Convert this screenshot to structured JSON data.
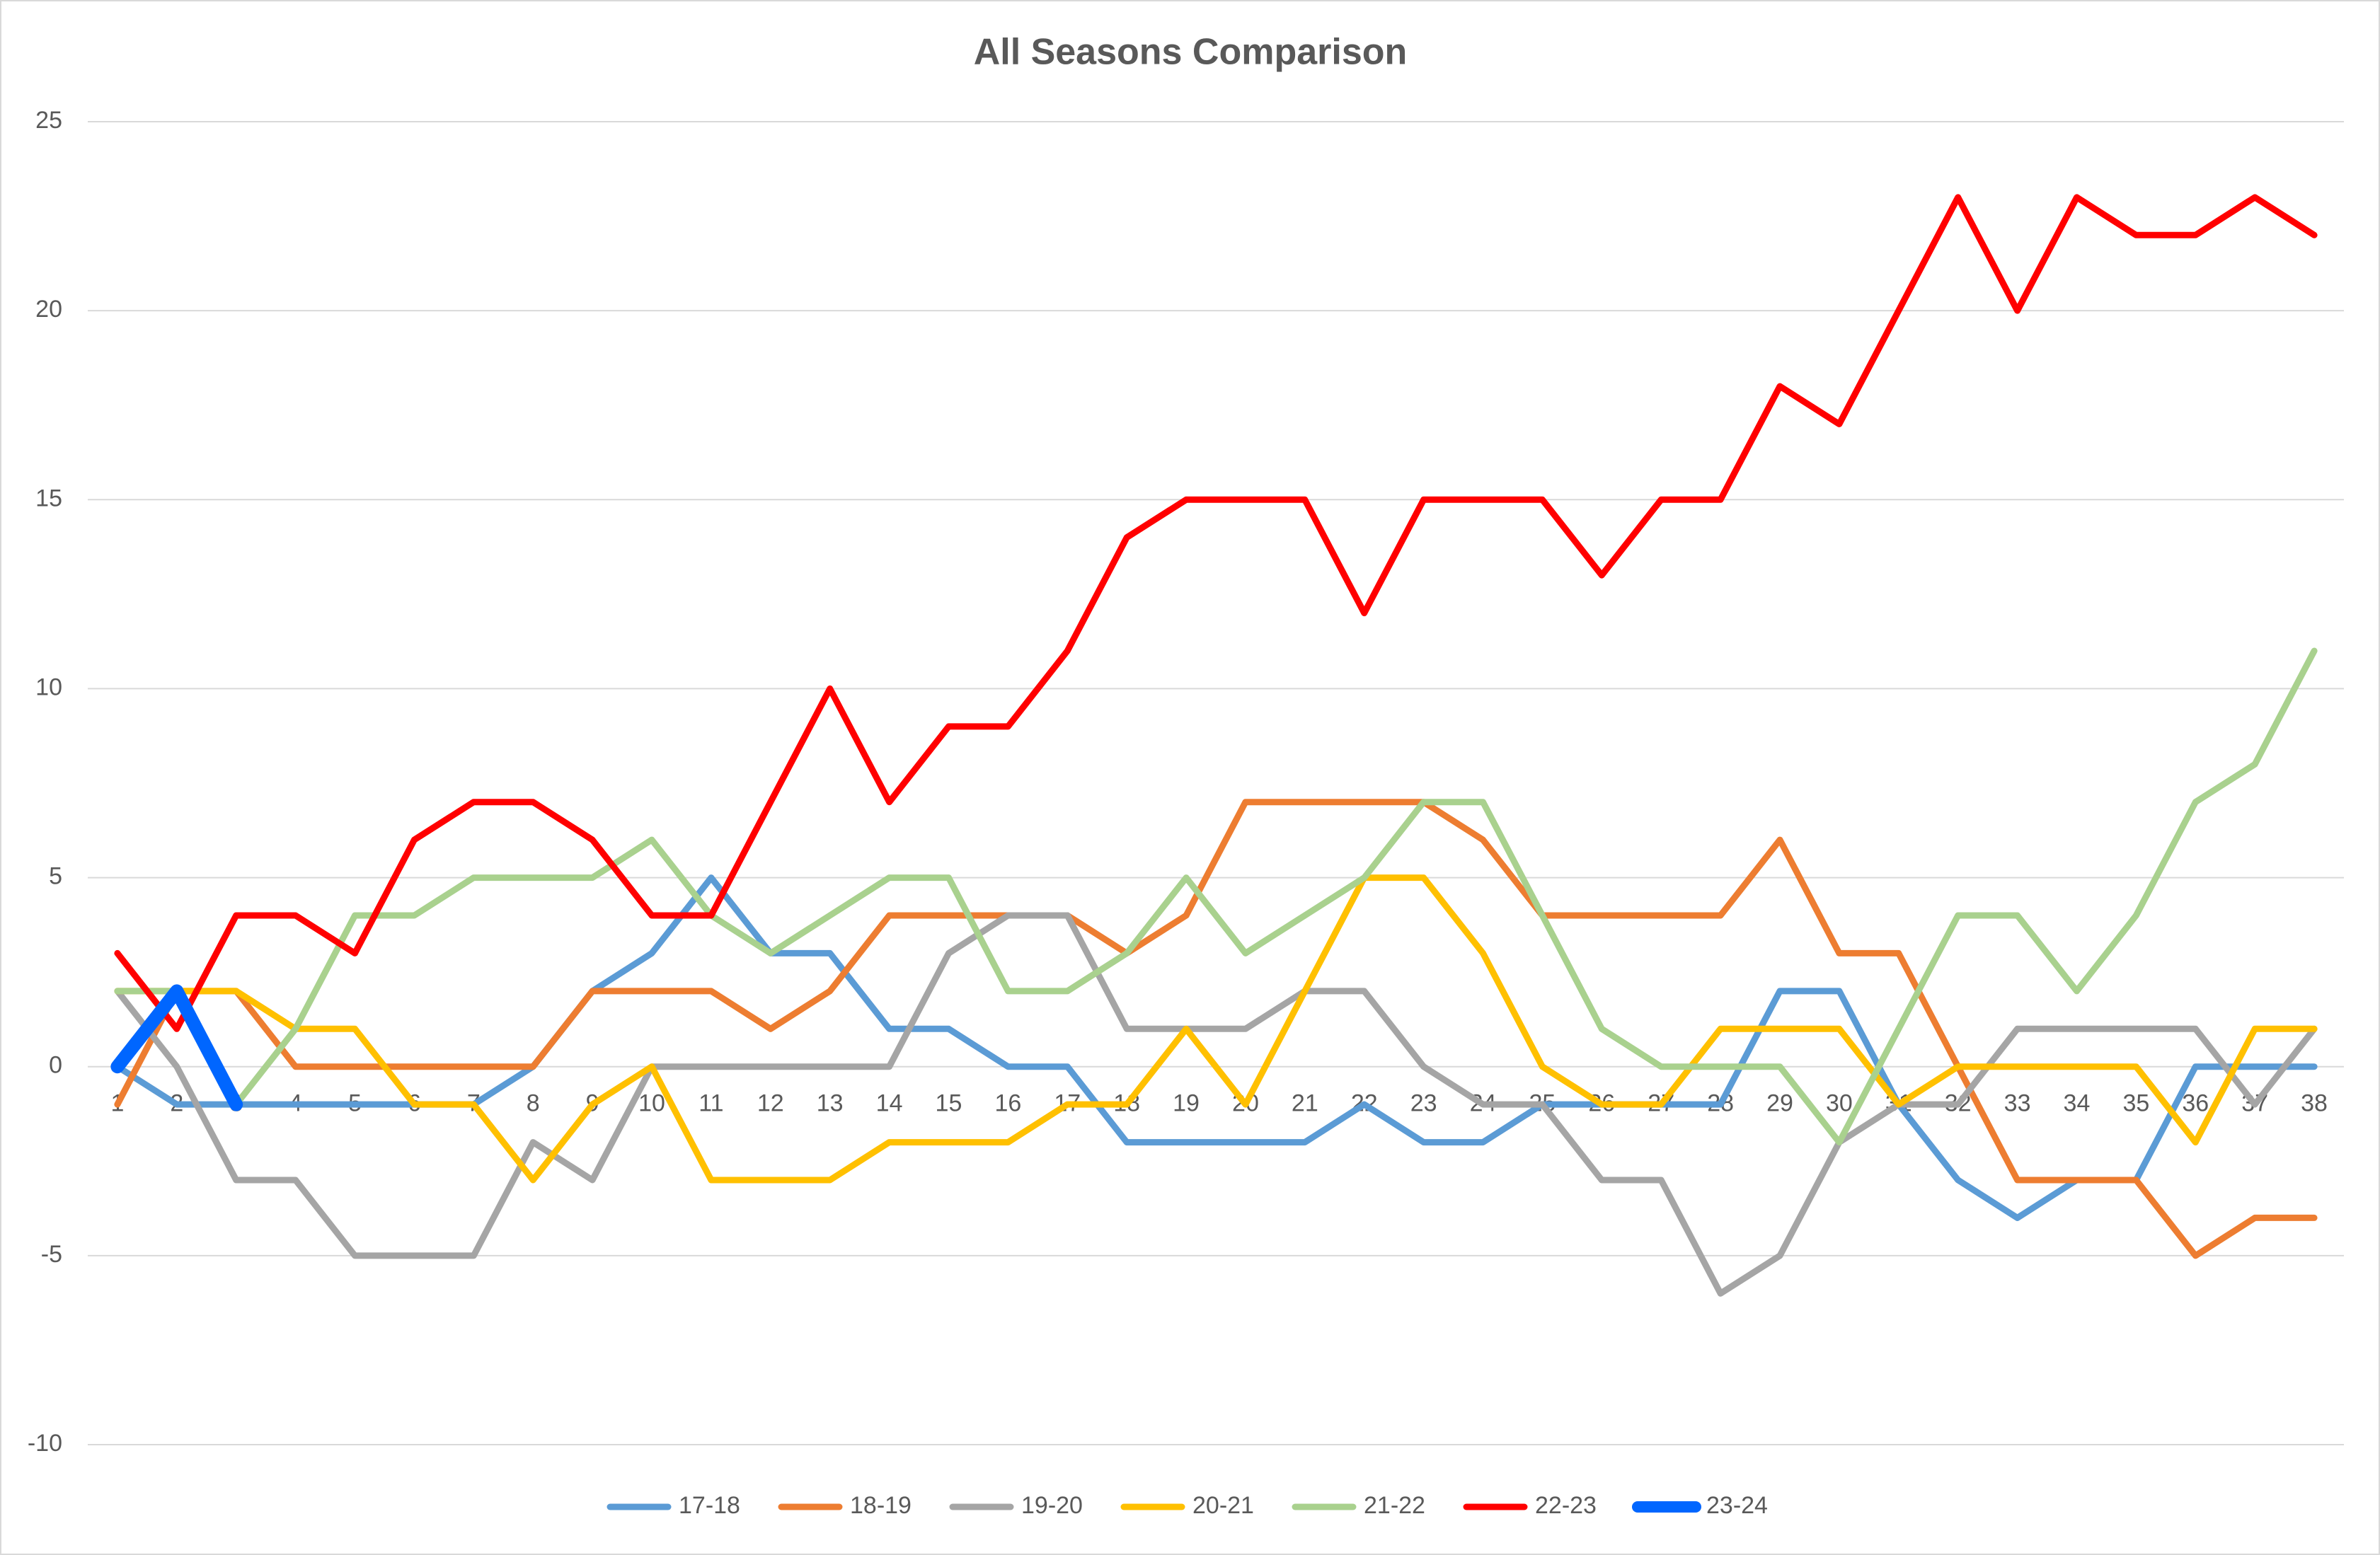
{
  "chart_data": {
    "type": "line",
    "title": "All Seasons Comparison",
    "categories": [
      1,
      2,
      3,
      4,
      5,
      6,
      7,
      8,
      9,
      10,
      11,
      12,
      13,
      14,
      15,
      16,
      17,
      18,
      19,
      20,
      21,
      22,
      23,
      24,
      25,
      26,
      27,
      28,
      29,
      30,
      31,
      32,
      33,
      34,
      35,
      36,
      37,
      38
    ],
    "ylim": [
      -10,
      25
    ],
    "yticks": [
      -10,
      -5,
      0,
      5,
      10,
      15,
      20,
      25
    ],
    "grid": true,
    "legend": "bottom",
    "series": [
      {
        "name": "17-18",
        "color": "#5b9bd5",
        "values": [
          0,
          -1,
          -1,
          -1,
          -1,
          -1,
          -1,
          0,
          2,
          3,
          5,
          3,
          3,
          1,
          1,
          0,
          0,
          -2,
          -2,
          -2,
          -2,
          -1,
          -2,
          -2,
          -1,
          -1,
          -1,
          -1,
          2,
          2,
          -1,
          -3,
          -4,
          -3,
          -3,
          0,
          0,
          0
        ]
      },
      {
        "name": "18-19",
        "color": "#ed7d31",
        "values": [
          -1,
          2,
          2,
          0,
          0,
          0,
          0,
          0,
          2,
          2,
          2,
          1,
          2,
          4,
          4,
          4,
          4,
          3,
          4,
          7,
          7,
          7,
          7,
          6,
          4,
          4,
          4,
          4,
          6,
          3,
          3,
          0,
          -3,
          -3,
          -3,
          -5,
          -4,
          -4
        ]
      },
      {
        "name": "19-20",
        "color": "#a5a5a5",
        "values": [
          2,
          0,
          -3,
          -3,
          -5,
          -5,
          -5,
          -2,
          -3,
          0,
          0,
          0,
          0,
          0,
          3,
          4,
          4,
          1,
          1,
          1,
          2,
          2,
          0,
          -1,
          -1,
          -3,
          -3,
          -6,
          -5,
          -2,
          -1,
          -1,
          1,
          1,
          1,
          1,
          -1,
          1
        ]
      },
      {
        "name": "20-21",
        "color": "#ffc000",
        "values": [
          2,
          2,
          2,
          1,
          1,
          -1,
          -1,
          -3,
          -1,
          0,
          -3,
          -3,
          -3,
          -2,
          -2,
          -2,
          -1,
          -1,
          1,
          -1,
          2,
          5,
          5,
          3,
          0,
          -1,
          -1,
          1,
          1,
          1,
          -1,
          0,
          0,
          0,
          0,
          -2,
          1,
          1
        ]
      },
      {
        "name": "21-22",
        "color": "#a9d18e",
        "values": [
          2,
          2,
          -1,
          1,
          4,
          4,
          5,
          5,
          5,
          6,
          4,
          3,
          4,
          5,
          5,
          2,
          2,
          3,
          5,
          3,
          4,
          5,
          7,
          7,
          4,
          1,
          0,
          0,
          0,
          -2,
          1,
          4,
          4,
          2,
          4,
          7,
          8,
          11
        ]
      },
      {
        "name": "22-23",
        "color": "#ff0000",
        "values": [
          3,
          1,
          4,
          4,
          3,
          6,
          7,
          7,
          6,
          4,
          4,
          7,
          10,
          7,
          9,
          9,
          11,
          14,
          15,
          15,
          15,
          12,
          15,
          15,
          15,
          13,
          15,
          15,
          18,
          17,
          20,
          23,
          20,
          23,
          22,
          22,
          23,
          22
        ]
      },
      {
        "name": "23-24",
        "color": "#0066ff",
        "values": [
          0,
          2,
          -1,
          null,
          null,
          null,
          null,
          null,
          null,
          null,
          null,
          null,
          null,
          null,
          null,
          null,
          null,
          null,
          null,
          null,
          null,
          null,
          null,
          null,
          null,
          null,
          null,
          null,
          null,
          null,
          null,
          null,
          null,
          null,
          null,
          null,
          null,
          null
        ]
      }
    ]
  }
}
